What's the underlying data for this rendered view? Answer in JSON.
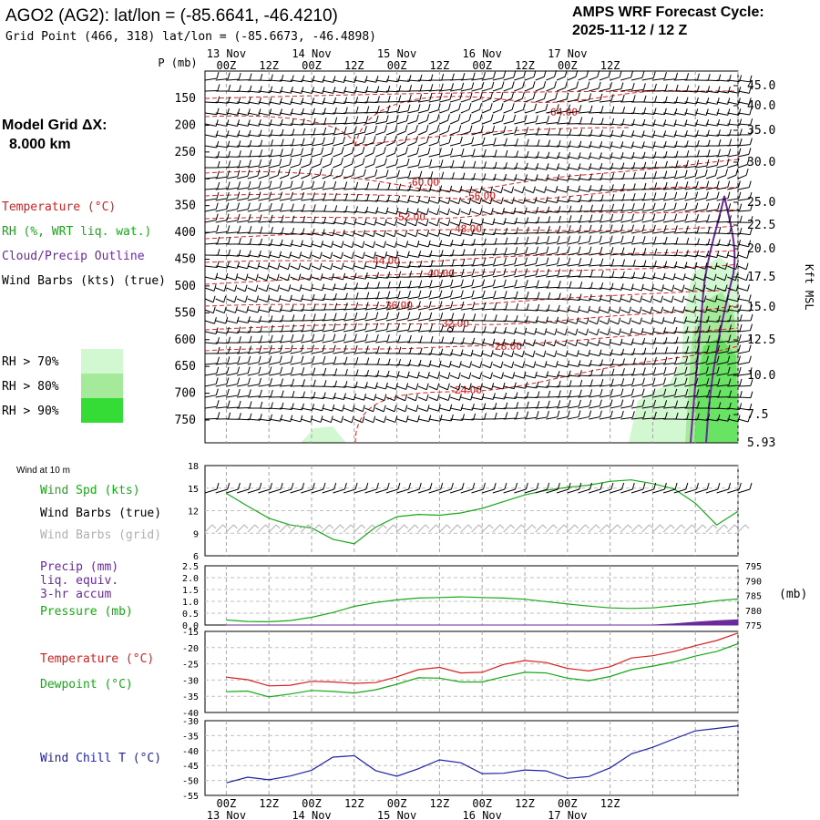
{
  "header": {
    "title": "AGO2 (AG2):  lat/lon = (-85.6641, -46.4210)",
    "grid_point": "Grid Point (466, 318) lat/lon = (-85.6673, -46.4898)",
    "cycle_title": "AMPS WRF Forecast Cycle:",
    "cycle_date": "2025-11-12 / 12  Z"
  },
  "side_panel": {
    "model_grid_label": "Model Grid ΔX:",
    "model_grid_value": "8.000 km",
    "legend": [
      {
        "label": "Temperature (°C)",
        "color": "#d42020"
      },
      {
        "label": "RH (%, WRT liq. wat.)",
        "color": "#18a818"
      },
      {
        "label": "Cloud/Precip Outline",
        "color": "#6a2a9a"
      },
      {
        "label": "Wind Barbs (kts) (true)",
        "color": "#000000"
      }
    ],
    "rh_legend": [
      {
        "label": "RH > 70%",
        "color": "#d2f8d2"
      },
      {
        "label": "RH > 80%",
        "color": "#a4ea9a"
      },
      {
        "label": "RH > 90%",
        "color": "#36dc36"
      }
    ]
  },
  "chart_data": [
    {
      "type": "contour",
      "name": "profile",
      "ylabel": "P (mb)",
      "right_label": "Kft MSL",
      "pressure_ticks": [
        150,
        200,
        250,
        300,
        350,
        400,
        450,
        500,
        550,
        600,
        650,
        700,
        750
      ],
      "height_ticks": [
        "45.0",
        "40.0",
        "35.0",
        "30.0",
        "25.0",
        "22.5",
        "20.0",
        "17.5",
        "15.0",
        "12.5",
        "10.0",
        "7.5",
        "5.93"
      ],
      "top_axis": [
        {
          "label": "00Z",
          "day": "13 Nov"
        },
        {
          "label": "12Z",
          "day": ""
        },
        {
          "label": "00Z",
          "day": "14 Nov"
        },
        {
          "label": "12Z",
          "day": ""
        },
        {
          "label": "00Z",
          "day": "15 Nov"
        },
        {
          "label": "12Z",
          "day": ""
        },
        {
          "label": "00Z",
          "day": "16 Nov"
        },
        {
          "label": "12Z",
          "day": ""
        },
        {
          "label": "00Z",
          "day": "17 Nov"
        },
        {
          "label": "12Z",
          "day": ""
        }
      ],
      "temperature_contours": [
        {
          "label": "-64.00",
          "value": -64
        },
        {
          "label": "-60.00",
          "value": -60
        },
        {
          "label": "-56.00",
          "value": -56
        },
        {
          "label": "-52.00",
          "value": -52
        },
        {
          "label": "-48.00",
          "value": -48
        },
        {
          "label": "-44.00",
          "value": -44
        },
        {
          "label": "-40.00",
          "value": -40
        },
        {
          "label": "-36.00",
          "value": -36
        },
        {
          "label": "-32.00",
          "value": -32
        },
        {
          "label": "-28.00",
          "value": -28
        },
        {
          "label": "-24.00",
          "value": -24
        }
      ]
    },
    {
      "type": "line",
      "name": "wind",
      "panel_title": "Wind at 10 m",
      "labels": [
        {
          "text": "Wind Spd (kts)",
          "color": "#18a818"
        },
        {
          "text": "Wind Barbs (true)",
          "color": "#000000"
        },
        {
          "text": "Wind Barbs (grid)",
          "color": "#b0b0b0"
        }
      ],
      "y_ticks": [
        "18",
        "15",
        "12",
        "9",
        "6"
      ],
      "ylim": [
        6,
        18
      ],
      "x": [
        0,
        6,
        12,
        18,
        24,
        30,
        36,
        42,
        48,
        54,
        60,
        66,
        72,
        78,
        84,
        90,
        96,
        102,
        108,
        114,
        120,
        126,
        132,
        138,
        144
      ],
      "series": [
        {
          "values": [
            14.3,
            12.6,
            11.0,
            10.1,
            9.7,
            8.2,
            7.6,
            9.8,
            11.2,
            11.5,
            11.4,
            11.7,
            12.3,
            13.2,
            14.1,
            14.7,
            15.1,
            15.4,
            15.9,
            16.1,
            15.6,
            14.9,
            13.0,
            10.1,
            11.9
          ],
          "color": "#18a818"
        }
      ]
    },
    {
      "type": "line",
      "name": "precip",
      "labels": [
        {
          "text": "Precip (mm)",
          "color": "#6a2a9a"
        },
        {
          "text": "liq. equiv.",
          "color": "#6a2a9a"
        },
        {
          "text": "3-hr accum",
          "color": "#6a2a9a"
        },
        {
          "text": "Pressure (mb)",
          "color": "#18a818"
        }
      ],
      "y_ticks": [
        "2.5",
        "2.0",
        "1.5",
        "1.0",
        "0.5",
        "0.0"
      ],
      "ylim": [
        0,
        2.5
      ],
      "y2_ticks": [
        "795",
        "790",
        "785",
        "780",
        "775"
      ],
      "y2lim": [
        775,
        795
      ],
      "y2_unit": "(mb)",
      "x": [
        0,
        6,
        12,
        18,
        24,
        30,
        36,
        42,
        48,
        54,
        60,
        66,
        72,
        78,
        84,
        90,
        96,
        102,
        108,
        114,
        120,
        126,
        132,
        138,
        144
      ],
      "series": [
        {
          "name": "pressure",
          "axis": "y2",
          "values": [
            776.7,
            776.2,
            776.1,
            776.5,
            777.6,
            779.2,
            781.3,
            782.6,
            783.5,
            784.1,
            784.3,
            784.5,
            784.3,
            784.1,
            783.7,
            782.9,
            782.1,
            781.4,
            780.8,
            780.6,
            780.8,
            781.5,
            782.2,
            783.2,
            783.8
          ],
          "color": "#18a818"
        },
        {
          "name": "precip",
          "axis": "y",
          "values": [
            0,
            0,
            0,
            0,
            0,
            0,
            0,
            0,
            0,
            0,
            0,
            0,
            0,
            0,
            0,
            0,
            0,
            0,
            0,
            0,
            0,
            0.05,
            0.12,
            0.18,
            0.22
          ],
          "color": "#6a2a9a"
        }
      ]
    },
    {
      "type": "line",
      "name": "temperature",
      "labels": [
        {
          "text": "Temperature (°C)",
          "color": "#d42020"
        },
        {
          "text": "Dewpoint (°C)",
          "color": "#18a818"
        }
      ],
      "y_ticks": [
        "-15",
        "-20",
        "-25",
        "-30",
        "-35",
        "-40"
      ],
      "ylim": [
        -40,
        -15
      ],
      "x": [
        0,
        6,
        12,
        18,
        24,
        30,
        36,
        42,
        48,
        54,
        60,
        66,
        72,
        78,
        84,
        90,
        96,
        102,
        108,
        114,
        120,
        126,
        132,
        138,
        144
      ],
      "series": [
        {
          "name": "temperature",
          "values": [
            -29.1,
            -29.9,
            -31.8,
            -31.6,
            -30.4,
            -30.6,
            -31.0,
            -30.8,
            -29.0,
            -26.8,
            -26.1,
            -27.8,
            -27.6,
            -25.2,
            -24.0,
            -24.6,
            -26.4,
            -27.2,
            -25.9,
            -23.2,
            -22.5,
            -21.2,
            -19.4,
            -17.8,
            -15.5
          ],
          "color": "#d42020"
        },
        {
          "name": "dewpoint",
          "values": [
            -33.6,
            -33.4,
            -35.2,
            -34.3,
            -33.2,
            -33.5,
            -34.0,
            -33.0,
            -31.3,
            -29.3,
            -29.4,
            -30.6,
            -30.6,
            -29.0,
            -27.6,
            -27.8,
            -29.4,
            -30.2,
            -28.9,
            -26.8,
            -25.7,
            -24.4,
            -22.6,
            -21.2,
            -18.8
          ],
          "color": "#18a818"
        }
      ]
    },
    {
      "type": "line",
      "name": "windchill",
      "labels": [
        {
          "text": "Wind Chill T (°C)",
          "color": "#2020a8"
        }
      ],
      "y_ticks": [
        "-30",
        "-35",
        "-40",
        "-45",
        "-50",
        "-55"
      ],
      "ylim": [
        -55,
        -30
      ],
      "bottom_axis": [
        {
          "label": "00Z",
          "day": "13 Nov"
        },
        {
          "label": "12Z",
          "day": ""
        },
        {
          "label": "00Z",
          "day": "14 Nov"
        },
        {
          "label": "12Z",
          "day": ""
        },
        {
          "label": "00Z",
          "day": "15 Nov"
        },
        {
          "label": "12Z",
          "day": ""
        },
        {
          "label": "00Z",
          "day": "16 Nov"
        },
        {
          "label": "12Z",
          "day": ""
        },
        {
          "label": "00Z",
          "day": "17 Nov"
        },
        {
          "label": "12Z",
          "day": ""
        }
      ],
      "x": [
        0,
        6,
        12,
        18,
        24,
        30,
        36,
        42,
        48,
        54,
        60,
        66,
        72,
        78,
        84,
        90,
        96,
        102,
        108,
        114,
        120,
        126,
        132,
        138,
        144
      ],
      "series": [
        {
          "name": "windchill",
          "values": [
            -50.8,
            -48.9,
            -49.8,
            -48.5,
            -46.6,
            -42.2,
            -41.7,
            -46.7,
            -48.6,
            -46.1,
            -43.1,
            -44.1,
            -47.7,
            -47.6,
            -46.5,
            -46.8,
            -49.3,
            -48.7,
            -45.8,
            -41.1,
            -38.9,
            -36.1,
            -33.4,
            -32.6,
            -31.7
          ],
          "color": "#2020a8"
        }
      ]
    }
  ]
}
